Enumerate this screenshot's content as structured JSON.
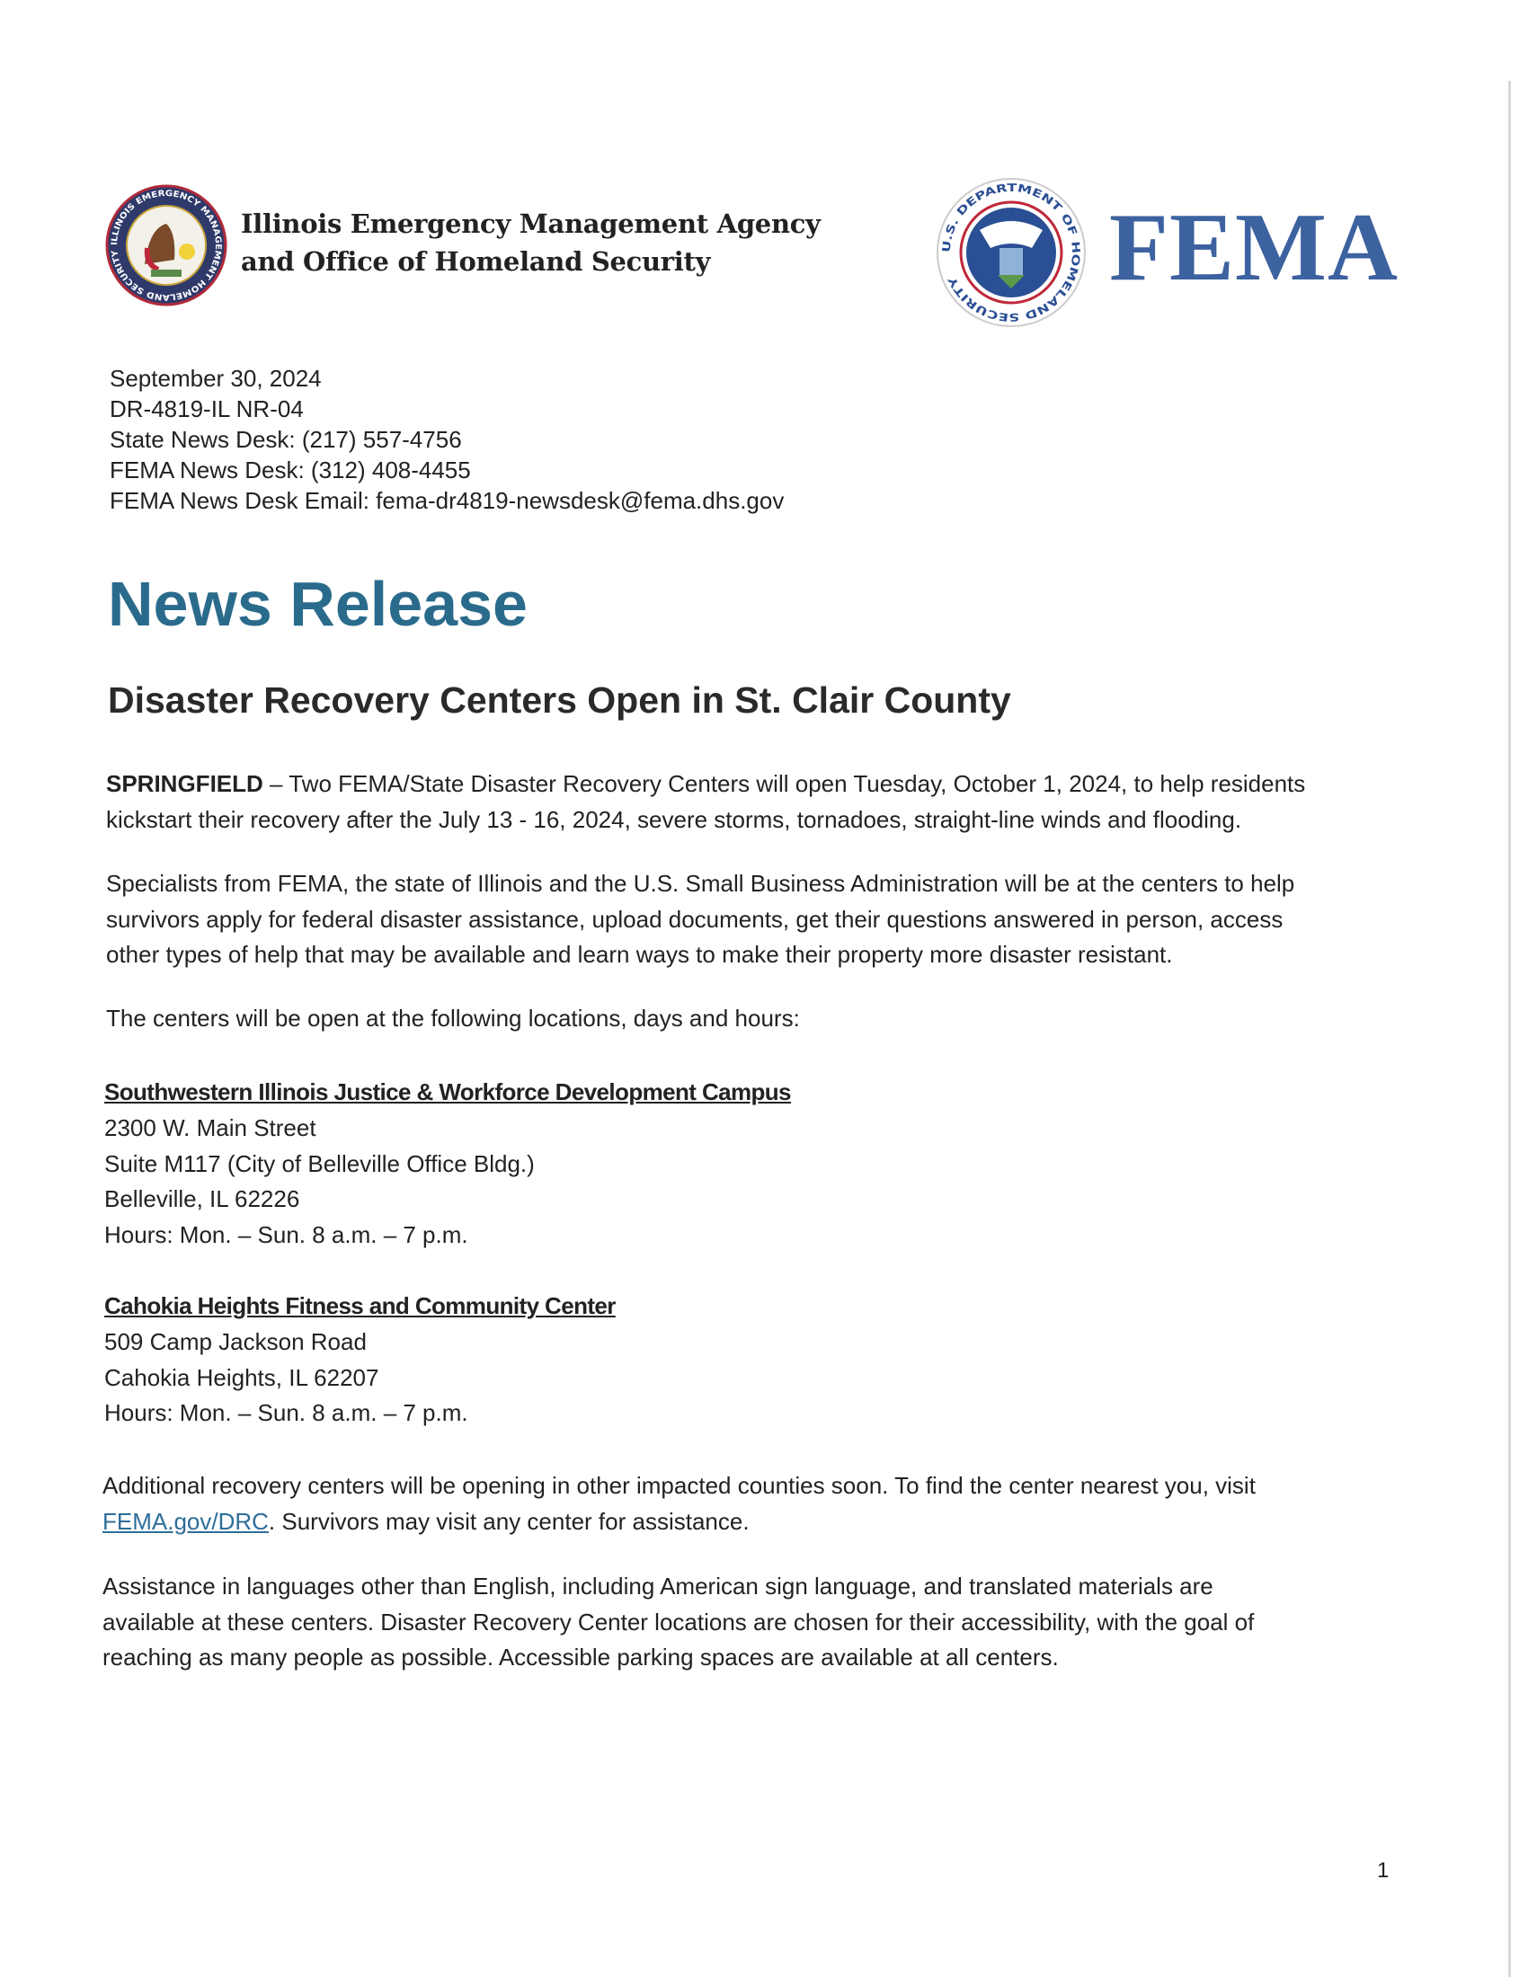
{
  "header": {
    "agency_line1": "Illinois Emergency Management Agency",
    "agency_line2": "and Office of Homeland Security",
    "illinois_seal_text": "ILLINOIS EMERGENCY MANAGEMENT HOMELAND SECURITY",
    "dhs_seal_text": "U.S. DEPARTMENT OF HOMELAND SECURITY",
    "fema_logo": "FEMA",
    "fema_color": "#3d62a0"
  },
  "meta": {
    "date": "September 30, 2024",
    "release_id": "DR-4819-IL NR-04",
    "state_desk": "State News Desk: (217) 557-4756",
    "fema_desk": "FEMA News Desk: (312) 408-4455",
    "fema_email": "FEMA News Desk Email: fema-dr4819-newsdesk@fema.dhs.gov"
  },
  "title": "News Release",
  "title_color": "#2a6b8c",
  "headline": "Disaster Recovery Centers Open in St. Clair County",
  "para1": {
    "dateline": "SPRINGFIELD",
    "line1": " – Two FEMA/State Disaster Recovery Centers will open Tuesday, October 1, 2024, to help residents",
    "line2": "kickstart their recovery after the July 13 - 16, 2024, severe storms, tornadoes, straight-line winds and flooding."
  },
  "para2": [
    "Specialists from FEMA, the state of Illinois and the U.S. Small Business Administration will be at the centers to help",
    "survivors apply for federal disaster assistance, upload documents, get their questions answered in person, access",
    "other types of help that may be available and learn ways to make their property more disaster resistant."
  ],
  "para3": "The centers will be open at the following locations, days and hours:",
  "locations": [
    {
      "name": "Southwestern Illinois Justice & Workforce Development Campus",
      "lines": [
        "2300 W. Main Street",
        "Suite M117 (City of Belleville Office Bldg.)",
        "Belleville, IL 62226",
        "Hours: Mon. – Sun. 8 a.m. – 7 p.m."
      ]
    },
    {
      "name": "Cahokia Heights Fitness and Community Center",
      "lines": [
        "509 Camp Jackson Road",
        "Cahokia Heights, IL 62207",
        "Hours: Mon. – Sun. 8 a.m. – 7 p.m."
      ]
    }
  ],
  "para4": {
    "line1": "Additional recovery centers will be opening in other impacted counties soon. To find the center nearest you, visit",
    "link": "FEMA.gov/DRC",
    "line2_rest": ". Survivors may visit any center for assistance."
  },
  "para5": [
    "Assistance in languages other than English, including American sign language, and translated materials are",
    "available at these centers. Disaster Recovery Center locations are chosen for their accessibility, with the goal of",
    "reaching as many people as possible. Accessible parking spaces are available at all centers."
  ],
  "page_number": "1"
}
